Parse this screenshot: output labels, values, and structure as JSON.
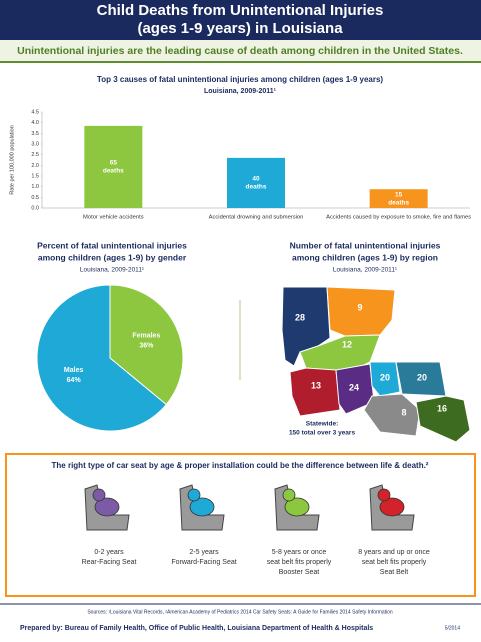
{
  "header": {
    "title_lines": [
      "Child Deaths from Unintentional Injuries",
      "(ages 1-9 years) in Louisiana"
    ],
    "tagline": "Unintentional injuries are the leading cause of death among children in the United States."
  },
  "chart_data": [
    {
      "type": "bar",
      "title_lines": [
        "Top 3 causes of fatal unintentional injuries among children (ages 1-9 years)",
        "Louisiana, 2009-2011¹"
      ],
      "ylabel": "Rate per 100,000 population",
      "categories": [
        "Motor vehicle accidents",
        "Accidental drowning and submersion",
        "Accidents caused by exposure to smoke, fire and flames"
      ],
      "values": [
        3.85,
        2.35,
        0.88
      ],
      "colors": [
        "#8dc63f",
        "#1fa9d6",
        "#f7941d"
      ],
      "bar_annotations": [
        [
          "65",
          "deaths"
        ],
        [
          "40",
          "deaths"
        ],
        [
          "15",
          "deaths"
        ]
      ],
      "ylim": [
        0,
        4.5
      ],
      "yticks": [
        {
          "value": 0,
          "label": "0.0"
        },
        {
          "value": 0.5,
          "label": "0.5"
        },
        {
          "value": 1,
          "label": "1.0"
        },
        {
          "value": 1.5,
          "label": "1.5"
        },
        {
          "value": 2,
          "label": "2.0"
        },
        {
          "value": 2.5,
          "label": "2.5"
        },
        {
          "value": 3,
          "label": "3.0"
        },
        {
          "value": 3.5,
          "label": "3.5"
        },
        {
          "value": 4,
          "label": "4.0"
        },
        {
          "value": 4.5,
          "label": "4.5"
        }
      ]
    },
    {
      "type": "pie",
      "title_lines": [
        "Percent of fatal unintentional injuries",
        "among children (ages 1-9) by gender",
        "Louisiana, 2009-2011¹"
      ],
      "categories": [
        "Females",
        "Males"
      ],
      "values": [
        36,
        64
      ],
      "value_labels": [
        "36%",
        "64%"
      ],
      "colors": [
        "#8dc63f",
        "#1fa9d6"
      ]
    }
  ],
  "map": {
    "title_lines": [
      "Number of fatal unintentional injuries",
      "among children (ages 1-9) by region",
      "Louisiana, 2009-2011¹"
    ],
    "regions": [
      {
        "label": "28",
        "color": "#1f3a6e"
      },
      {
        "label": "9",
        "color": "#f7941d"
      },
      {
        "label": "12",
        "color": "#8dc63f"
      },
      {
        "label": "13",
        "color": "#b01e2e"
      },
      {
        "label": "24",
        "color": "#5b2c83"
      },
      {
        "label": "20",
        "color": "#1fa9d6"
      },
      {
        "label": "20",
        "color": "#2a7a9a"
      },
      {
        "label": "8",
        "color": "#8a8a8a"
      },
      {
        "label": "16",
        "color": "#3d6b1f"
      }
    ],
    "statewide_lines": [
      "Statewide:",
      "150 total over 3 years"
    ]
  },
  "car_seats": {
    "title": "The right type of car seat by age & proper installation could be the difference between life & death.²",
    "items": [
      [
        "0-2 years",
        "Rear-Facing Seat"
      ],
      [
        "2-5 years",
        "Forward-Facing Seat"
      ],
      [
        "5-8 years or once",
        "seat belt fits properly",
        "Booster Seat"
      ],
      [
        "8 years and up or once",
        "seat belt fits properly",
        "Seat Belt"
      ]
    ]
  },
  "footer": {
    "sources": "Sources: ¹Louisiana Vital Records, ²American Academy of Pediatrics 2014 Car Safety Seats: A Guide for Families 2014 Safety Information",
    "prepared_by": "Prepared by: Bureau of Family Health, Office of Public Health, Louisiana Department of Health & Hospitals",
    "date": "5/2014"
  }
}
